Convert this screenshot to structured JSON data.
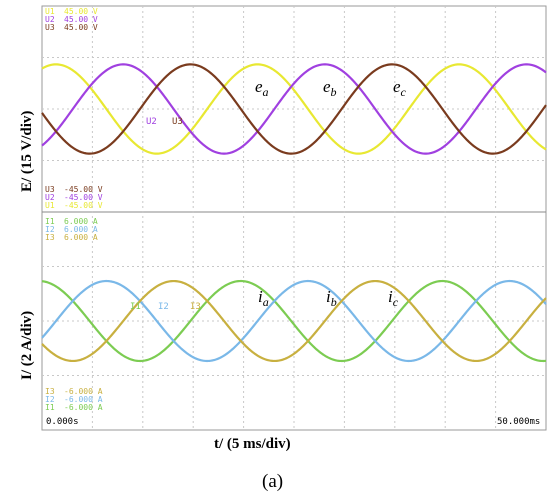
{
  "figure": {
    "xlabel": "t/ (5 ms/div)",
    "ylabel_top": "E/ (15 V/div)",
    "ylabel_bottom": "I/ (2 A/div)",
    "caption": "(a)"
  },
  "scope": {
    "time_start": "0.000s",
    "time_end": "50.000ms",
    "grid": true,
    "divisions_x": 10,
    "colors": {
      "U1": "#e8e832",
      "U2": "#a040e0",
      "U3": "#7a3b1e",
      "I1": "#7ccc52",
      "I2": "#7ab8e8",
      "I3": "#c8b040"
    },
    "voltage_scale_top": [
      {
        "name": "U1",
        "text": "45.00 V"
      },
      {
        "name": "U2",
        "text": "45.00 V"
      },
      {
        "name": "U3",
        "text": "45.00 V"
      }
    ],
    "voltage_scale_bottom": [
      {
        "name": "U3",
        "text": "-45.00 V"
      },
      {
        "name": "U2",
        "text": "-45.00 V"
      },
      {
        "name": "U1",
        "text": "-45.00 V"
      }
    ],
    "current_scale_top": [
      {
        "name": "I1",
        "text": "6.000 A"
      },
      {
        "name": "I2",
        "text": "6.000 A"
      },
      {
        "name": "I3",
        "text": "6.000 A"
      }
    ],
    "current_scale_bottom": [
      {
        "name": "I3",
        "text": "-6.000 A"
      },
      {
        "name": "I2",
        "text": "-6.000 A"
      },
      {
        "name": "I1",
        "text": "-6.000 A"
      }
    ],
    "voltage_markers": [
      "U2",
      "U3"
    ],
    "current_markers": [
      "I1",
      "I2",
      "I3"
    ],
    "voltage_labels": [
      {
        "base": "e",
        "sub": "a"
      },
      {
        "base": "e",
        "sub": "b"
      },
      {
        "base": "e",
        "sub": "c"
      }
    ],
    "current_labels": [
      {
        "base": "i",
        "sub": "a"
      },
      {
        "base": "i",
        "sub": "b"
      },
      {
        "base": "i",
        "sub": "c"
      }
    ]
  },
  "chart_data": [
    {
      "type": "line",
      "title": "",
      "xlabel": "t/ (5 ms/div)",
      "ylabel": "E/ (15 V/div)",
      "xlim": [
        0,
        50
      ],
      "ylim": [
        -45,
        45
      ],
      "period_ms": 20,
      "series": [
        {
          "name": "e_a",
          "channel": "U1",
          "amplitude": 19.5,
          "phase_deg_at_t0": 65,
          "color": "#e8e832"
        },
        {
          "name": "e_b",
          "channel": "U2",
          "amplitude": 19.5,
          "phase_deg_at_t0": -55,
          "color": "#a040e0"
        },
        {
          "name": "e_c",
          "channel": "U3",
          "amplitude": 19.5,
          "phase_deg_at_t0": 185,
          "color": "#7a3b1e"
        }
      ]
    },
    {
      "type": "line",
      "title": "",
      "xlabel": "t/ (5 ms/div)",
      "ylabel": "I/ (2 A/div)",
      "xlim": [
        0,
        50
      ],
      "ylim": [
        -6,
        6
      ],
      "period_ms": 20,
      "series": [
        {
          "name": "i_a",
          "channel": "I1",
          "amplitude": 2.2,
          "phase_deg_at_t0": 95,
          "color": "#7ccc52"
        },
        {
          "name": "i_b",
          "channel": "I2",
          "amplitude": 2.2,
          "phase_deg_at_t0": -25,
          "color": "#7ab8e8"
        },
        {
          "name": "i_c",
          "channel": "I3",
          "amplitude": 2.2,
          "phase_deg_at_t0": 215,
          "color": "#c8b040"
        }
      ]
    }
  ]
}
